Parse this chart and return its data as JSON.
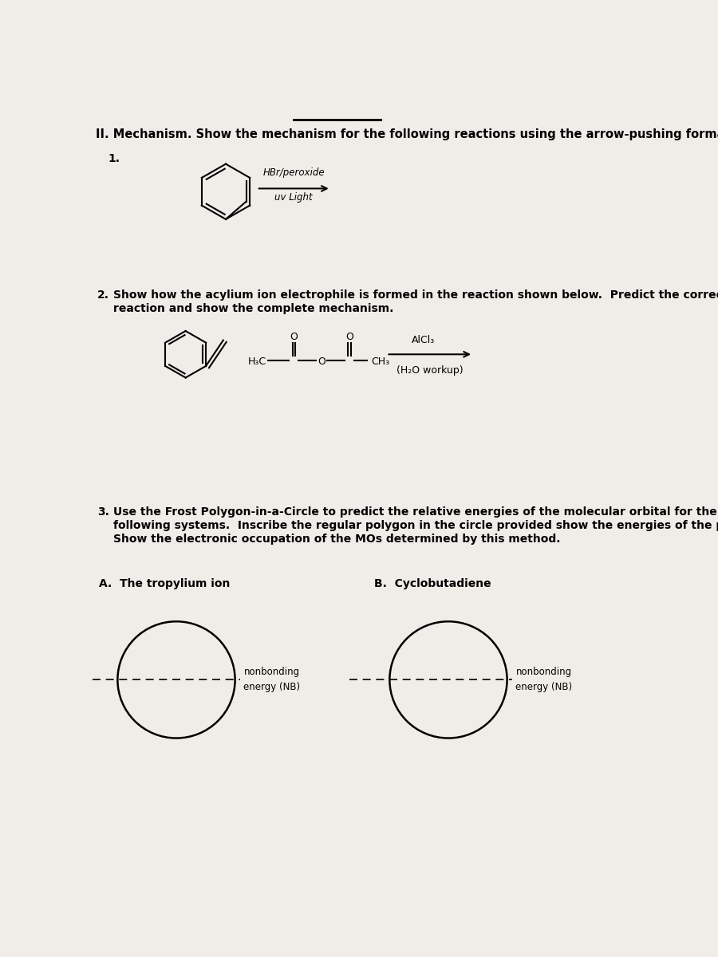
{
  "bg_color": "#e8e5e0",
  "page_bg": "#f0ede8",
  "title_text": "II. Mechanism. Show the mechanism for the following reactions using the arrow-pushing formalism.",
  "q1_label": "1.",
  "q1_reagent1": "HBr/peroxide",
  "q1_reagent2": "uv Light",
  "q2_label": "2.",
  "q2_text1": "Show how the acylium ion electrophile is formed in the reaction shown below.  Predict the correct product of the",
  "q2_text2": "reaction and show the complete mechanism.",
  "q2_alcl3": "AlCl₃",
  "q2_workup": "(H₂O workup)",
  "q2_h3c": "H₃C",
  "q2_ch3": "CH₃",
  "q3_label": "3.",
  "q3_text1": "Use the Frost Polygon-in-a-Circle to predict the relative energies of the molecular orbital for the",
  "q3_text2": "following systems.  Inscribe the regular polygon in the circle provided show the energies of the pi MOs.",
  "q3_text3": "Show the electronic occupation of the MOs determined by this method.",
  "q3a_label": "A.  The tropylium ion",
  "q3b_label": "B.  Cyclobutadiene",
  "nb_label": "nonbonding",
  "nb_label2": "energy (NB)",
  "font_size_title": 10.5,
  "font_size_body": 10,
  "font_size_label": 10
}
